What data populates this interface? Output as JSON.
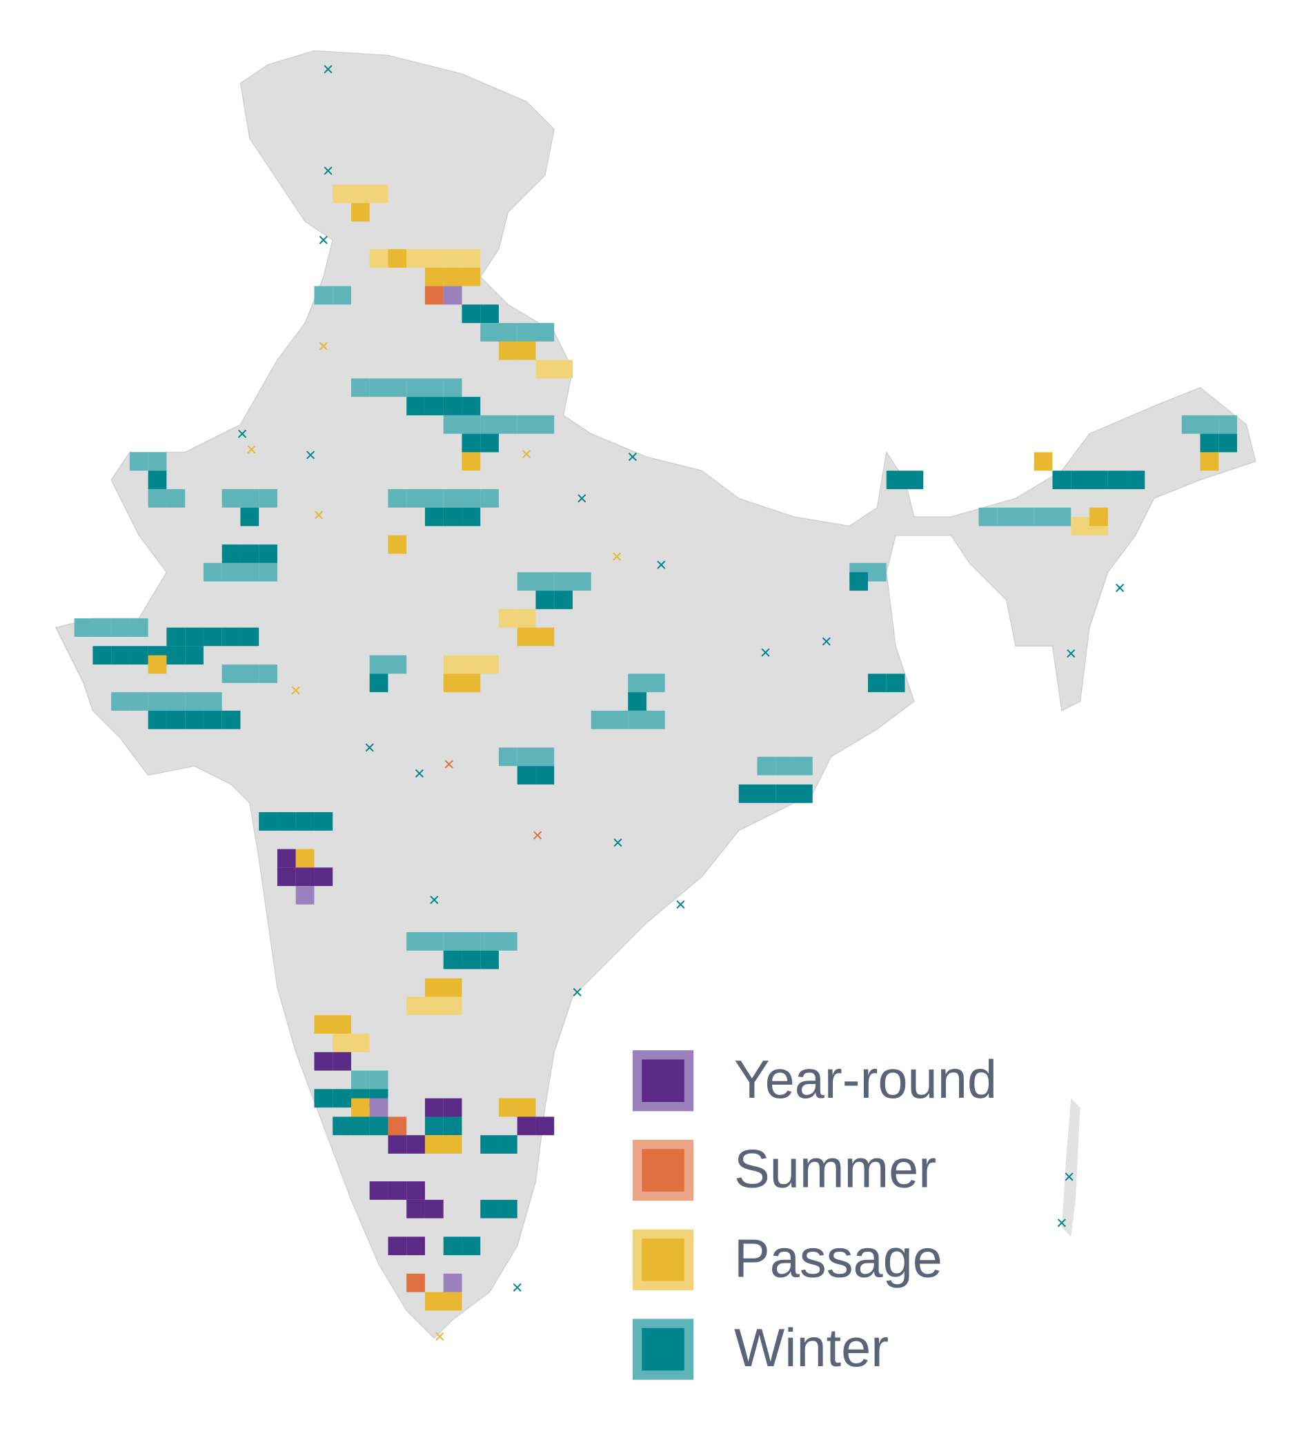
{
  "legend": {
    "items": [
      {
        "label": "Year-round",
        "color": "#5b2a86",
        "light": "#9a80bd"
      },
      {
        "label": "Summer",
        "color": "#e07040",
        "light": "#eca486"
      },
      {
        "label": "Passage",
        "color": "#e8b830",
        "light": "#f1d47a"
      },
      {
        "label": "Winter",
        "color": "#00858c",
        "light": "#5fb4b9"
      }
    ]
  }
}
